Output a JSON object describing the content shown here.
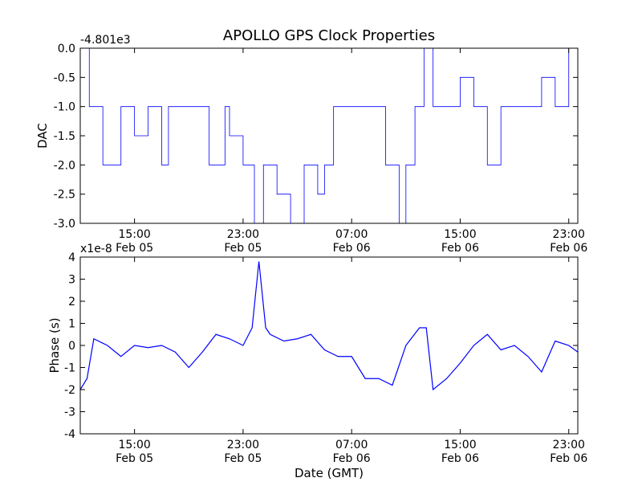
{
  "title": "APOLLO GPS Clock Properties",
  "chart_data": [
    {
      "type": "line",
      "ylabel": "DAC",
      "offset_text": "-4.801e3",
      "xlim": [
        "Feb 05 11:00",
        "Feb 06 23:40"
      ],
      "ylim": [
        -3.0,
        0.0
      ],
      "yticks": [
        "0.0",
        "-0.5",
        "-1.0",
        "-1.5",
        "-2.0",
        "-2.5",
        "-3.0"
      ],
      "xticks": [
        {
          "time": "15:00",
          "date": "Feb 05"
        },
        {
          "time": "23:00",
          "date": "Feb 05"
        },
        {
          "time": "07:00",
          "date": "Feb 06"
        },
        {
          "time": "15:00",
          "date": "Feb 06"
        },
        {
          "time": "23:00",
          "date": "Feb 06"
        }
      ],
      "color": "#0000ff",
      "series": [
        {
          "x": [
            "Feb 05 11:00",
            "Feb 05 11:40",
            "Feb 05 12:40",
            "Feb 05 14:00",
            "Feb 05 15:00",
            "Feb 05 16:00",
            "Feb 05 17:00",
            "Feb 05 17:30",
            "Feb 05 19:00",
            "Feb 05 20:30",
            "Feb 05 21:40",
            "Feb 05 22:00",
            "Feb 05 23:00",
            "Feb 05 23:50",
            "Feb 06 00:30",
            "Feb 06 01:30",
            "Feb 06 02:30",
            "Feb 06 03:30",
            "Feb 06 04:30",
            "Feb 06 05:00",
            "Feb 06 05:40",
            "Feb 06 06:30",
            "Feb 06 07:00",
            "Feb 06 08:00",
            "Feb 06 09:30",
            "Feb 06 10:30",
            "Feb 06 11:00",
            "Feb 06 11:40",
            "Feb 06 12:20",
            "Feb 06 13:00",
            "Feb 06 14:00",
            "Feb 06 15:00",
            "Feb 06 16:00",
            "Feb 06 17:00",
            "Feb 06 18:00",
            "Feb 06 19:00",
            "Feb 06 20:00",
            "Feb 06 21:00",
            "Feb 06 22:00",
            "Feb 06 23:00",
            "Feb 06 23:40"
          ],
          "y": [
            0.0,
            -1.0,
            -2.0,
            -1.0,
            -1.5,
            -1.0,
            -2.0,
            -1.0,
            -1.0,
            -2.0,
            -1.0,
            -1.5,
            -2.0,
            -3.0,
            -2.0,
            -2.5,
            -3.0,
            -2.0,
            -2.5,
            -2.0,
            -1.0,
            -1.0,
            -1.0,
            -1.0,
            -2.0,
            -3.0,
            -2.0,
            -1.0,
            0.0,
            -1.0,
            -1.0,
            -0.5,
            -1.0,
            -2.0,
            -1.0,
            -1.0,
            -1.0,
            -0.5,
            -1.0,
            0.0,
            -1.0
          ]
        }
      ]
    },
    {
      "type": "line",
      "ylabel": "Phase (s)",
      "xlabel": "Date (GMT)",
      "offset_text": "x1e-8",
      "xlim": [
        "Feb 05 11:00",
        "Feb 06 23:40"
      ],
      "ylim": [
        -4,
        4
      ],
      "yticks": [
        "4",
        "3",
        "2",
        "1",
        "0",
        "-1",
        "-2",
        "-3",
        "-4"
      ],
      "xticks": [
        {
          "time": "15:00",
          "date": "Feb 05"
        },
        {
          "time": "23:00",
          "date": "Feb 05"
        },
        {
          "time": "07:00",
          "date": "Feb 06"
        },
        {
          "time": "15:00",
          "date": "Feb 06"
        },
        {
          "time": "23:00",
          "date": "Feb 06"
        }
      ],
      "color": "#0000ff",
      "series": [
        {
          "x": [
            "Feb 05 11:00",
            "Feb 05 11:30",
            "Feb 05 12:00",
            "Feb 05 13:00",
            "Feb 05 14:00",
            "Feb 05 15:00",
            "Feb 05 16:00",
            "Feb 05 17:00",
            "Feb 05 18:00",
            "Feb 05 19:00",
            "Feb 05 20:00",
            "Feb 05 21:00",
            "Feb 05 22:00",
            "Feb 05 23:00",
            "Feb 05 23:40",
            "Feb 06 00:10",
            "Feb 06 00:40",
            "Feb 06 01:00",
            "Feb 06 02:00",
            "Feb 06 03:00",
            "Feb 06 04:00",
            "Feb 06 05:00",
            "Feb 06 06:00",
            "Feb 06 07:00",
            "Feb 06 08:00",
            "Feb 06 09:00",
            "Feb 06 10:00",
            "Feb 06 11:00",
            "Feb 06 12:00",
            "Feb 06 12:30",
            "Feb 06 13:00",
            "Feb 06 14:00",
            "Feb 06 15:00",
            "Feb 06 16:00",
            "Feb 06 17:00",
            "Feb 06 18:00",
            "Feb 06 19:00",
            "Feb 06 20:00",
            "Feb 06 21:00",
            "Feb 06 22:00",
            "Feb 06 23:00",
            "Feb 06 23:40"
          ],
          "y": [
            -2.0,
            -1.5,
            0.3,
            0.0,
            -0.5,
            0.0,
            -0.1,
            0.0,
            -0.3,
            -1.0,
            -0.3,
            0.5,
            0.3,
            0.0,
            0.8,
            3.8,
            0.8,
            0.5,
            0.2,
            0.3,
            0.5,
            -0.2,
            -0.5,
            -0.5,
            -1.5,
            -1.5,
            -1.8,
            0.0,
            0.8,
            0.8,
            -2.0,
            -1.5,
            -0.8,
            0.0,
            0.5,
            -0.2,
            0.0,
            -0.5,
            -1.2,
            0.2,
            0.0,
            -0.3
          ]
        }
      ]
    }
  ]
}
